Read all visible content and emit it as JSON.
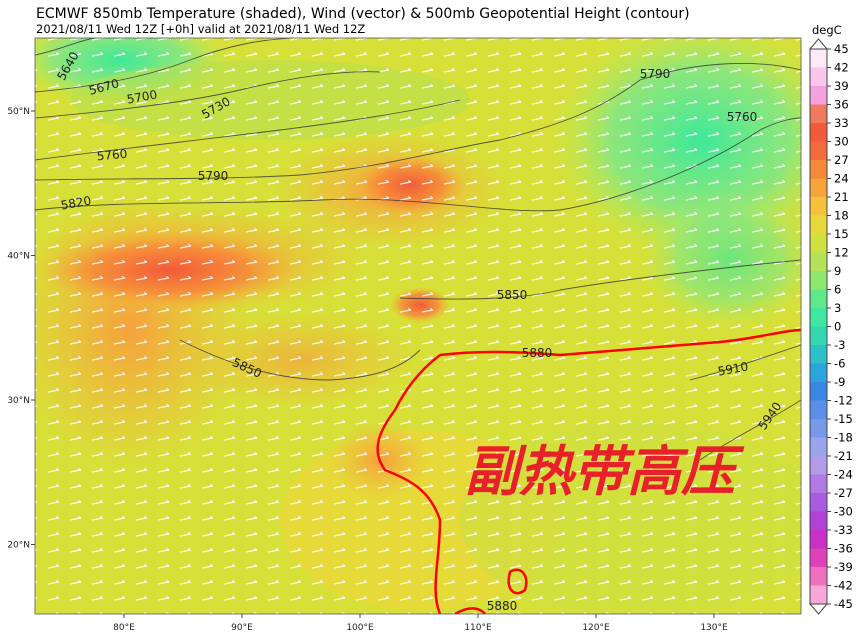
{
  "header": {
    "title": "ECMWF 850mb Temperature (shaded), Wind (vector) & 500mb Geopotential Height (contour)",
    "subtitle": "2021/08/11 Wed 12Z [+0h] valid at 2021/08/11 Wed 12Z"
  },
  "map": {
    "lon_ticks": [
      {
        "value": 80,
        "label": "80°E"
      },
      {
        "value": 90,
        "label": "90°E"
      },
      {
        "value": 100,
        "label": "100°E"
      },
      {
        "value": 110,
        "label": "110°E"
      },
      {
        "value": 120,
        "label": "120°E"
      },
      {
        "value": 130,
        "label": "130°E"
      }
    ],
    "lat_ticks": [
      {
        "value": 50,
        "label": "50°N"
      },
      {
        "value": 40,
        "label": "40°N"
      },
      {
        "value": 30,
        "label": "30°N"
      },
      {
        "value": 20,
        "label": "20°N"
      }
    ],
    "contour_labels": [
      "5640",
      "5670",
      "5700",
      "5730",
      "5760",
      "5790",
      "5820",
      "5850",
      "5850",
      "5790",
      "5760",
      "5880",
      "5910",
      "5940",
      "5880"
    ],
    "annotation": "副热带高压"
  },
  "colorbar": {
    "unit": "degC",
    "ticks": [
      45,
      42,
      39,
      36,
      33,
      30,
      27,
      24,
      21,
      18,
      15,
      12,
      9,
      6,
      3,
      0,
      -3,
      -6,
      -9,
      -12,
      -15,
      -18,
      -21,
      -24,
      -27,
      -30,
      -33,
      -36,
      -39,
      -42,
      -45
    ]
  }
}
